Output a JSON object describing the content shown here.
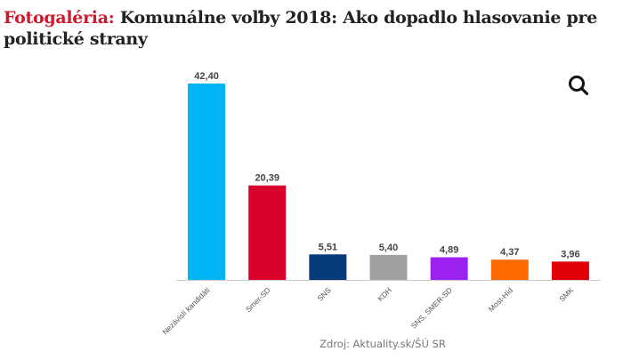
{
  "header": {
    "kicker": "Fotogaléria:",
    "title": "Komunálne voľby 2018: Ako dopadlo hlasovanie pre politické strany",
    "kicker_color": "#d0192c"
  },
  "toolbar": {
    "zoom_icon": "magnifier-icon"
  },
  "source": "Zdroj: Aktuality.sk/ŠÚ SR",
  "chart_data": {
    "type": "bar",
    "title": "Komunálne voľby 2018: Ako dopadlo hlasovanie pre politické strany",
    "xlabel": "",
    "ylabel": "",
    "ylim": [
      0,
      42.4
    ],
    "grid": false,
    "legend": "none",
    "categories": [
      "Nezávislí kandidáti",
      "Smer-SD",
      "SNS",
      "KDH",
      "SNS, SMER-SD",
      "Most-Híd",
      "SMK"
    ],
    "values": [
      42.4,
      20.39,
      5.51,
      5.4,
      4.89,
      4.37,
      3.96
    ],
    "value_labels": [
      "42,40",
      "20,39",
      "5,51",
      "5,40",
      "4,89",
      "4,37",
      "3,96"
    ],
    "colors": [
      "#00b4f5",
      "#d9002b",
      "#073a7a",
      "#a0a0a0",
      "#9b22f0",
      "#ff6a00",
      "#df0008"
    ],
    "source": "Zdroj: Aktuality.sk/ŠÚ SR"
  }
}
